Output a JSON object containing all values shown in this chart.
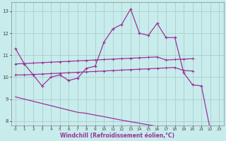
{
  "bg_color": "#c8ecec",
  "line_color": "#993399",
  "grid_color": "#aacccc",
  "xlabel": "Windchill (Refroidissement éolien,°C)",
  "xlim": [
    -0.5,
    23.5
  ],
  "ylim": [
    7.8,
    13.4
  ],
  "yticks": [
    8,
    9,
    10,
    11,
    12,
    13
  ],
  "xticks": [
    0,
    1,
    2,
    3,
    4,
    5,
    6,
    7,
    8,
    9,
    10,
    11,
    12,
    13,
    14,
    15,
    16,
    17,
    18,
    19,
    20,
    21,
    22,
    23
  ],
  "main_x": [
    0,
    1,
    2,
    3,
    4,
    5,
    6,
    7,
    8,
    9,
    10,
    11,
    12,
    13,
    14,
    15,
    16,
    17,
    18,
    19,
    20,
    21,
    22,
    23
  ],
  "main_y": [
    11.3,
    10.6,
    10.1,
    9.6,
    10.0,
    10.1,
    9.85,
    9.95,
    10.4,
    10.5,
    11.6,
    12.2,
    12.4,
    13.1,
    12.0,
    11.9,
    12.45,
    11.8,
    11.8,
    10.2,
    9.65,
    9.6,
    7.6,
    null
  ],
  "reg_upper_x": [
    0,
    1,
    2,
    3,
    4,
    5,
    6,
    7,
    8,
    9,
    10,
    11,
    12,
    13,
    14,
    15,
    16,
    17,
    18,
    19,
    20
  ],
  "reg_upper_y": [
    10.6,
    10.62,
    10.64,
    10.66,
    10.68,
    10.7,
    10.72,
    10.74,
    10.76,
    10.78,
    10.8,
    10.82,
    10.84,
    10.86,
    10.88,
    10.9,
    10.92,
    10.78,
    10.8,
    10.82,
    10.84
  ],
  "reg_lower_x": [
    0,
    1,
    2,
    3,
    4,
    5,
    6,
    7,
    8,
    9,
    10,
    11,
    12,
    13,
    14,
    15,
    16,
    17,
    18,
    19,
    20
  ],
  "reg_lower_y": [
    10.1,
    10.1,
    10.12,
    10.14,
    10.16,
    10.18,
    10.2,
    10.22,
    10.24,
    10.26,
    10.28,
    10.3,
    10.32,
    10.34,
    10.36,
    10.38,
    10.4,
    10.42,
    10.44,
    10.3,
    10.28
  ],
  "decline_x": [
    0,
    1,
    2,
    3,
    4,
    5,
    6,
    7,
    8,
    9,
    10,
    11,
    12,
    13,
    14,
    15,
    16,
    17,
    18,
    19,
    20,
    21,
    22,
    23
  ],
  "decline_y": [
    9.1,
    9.0,
    8.9,
    8.8,
    8.7,
    8.6,
    8.5,
    8.4,
    8.35,
    8.27,
    8.2,
    8.12,
    8.04,
    7.97,
    7.9,
    7.83,
    7.76,
    7.7,
    7.64,
    7.57,
    7.51,
    7.45,
    7.39,
    7.6
  ]
}
